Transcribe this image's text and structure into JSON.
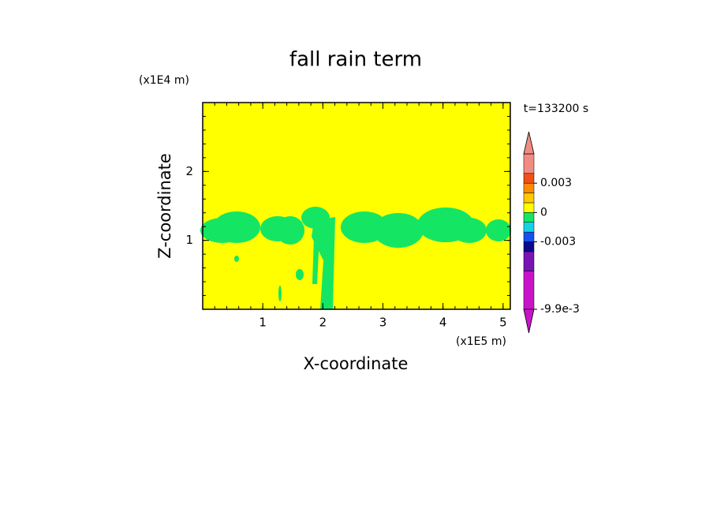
{
  "chart_data": {
    "type": "contour",
    "title": "fall rain term",
    "x_label": "X-coordinate",
    "y_label": "Z-coordinate",
    "x_unit": "(x1E5 m)",
    "y_unit": "(x1E4 m)",
    "time_label": "t=133200 s",
    "xlim": [
      0,
      5.12
    ],
    "xticks": [
      1,
      2,
      3,
      4,
      5
    ],
    "ylim": [
      0,
      3
    ],
    "yticks": [
      1,
      2
    ],
    "colorbar": {
      "lim": [
        -0.0099,
        0.006
      ],
      "bounds": [
        -0.0099,
        -0.006,
        -0.004,
        -0.003,
        -0.002,
        -0.001,
        0,
        0.001,
        0.002,
        0.003,
        0.004,
        0.006
      ],
      "colors": [
        "#c814c8",
        "#7814b4",
        "#0a0a8c",
        "#1450f0",
        "#14d2e6",
        "#14e664",
        "#ffff00",
        "#ffc800",
        "#ff8c00",
        "#f05014",
        "#f08c82"
      ],
      "ticks": [
        {
          "value": -0.0099,
          "label": "-9.9e-3"
        },
        -0.003,
        0,
        0.003
      ]
    }
  }
}
